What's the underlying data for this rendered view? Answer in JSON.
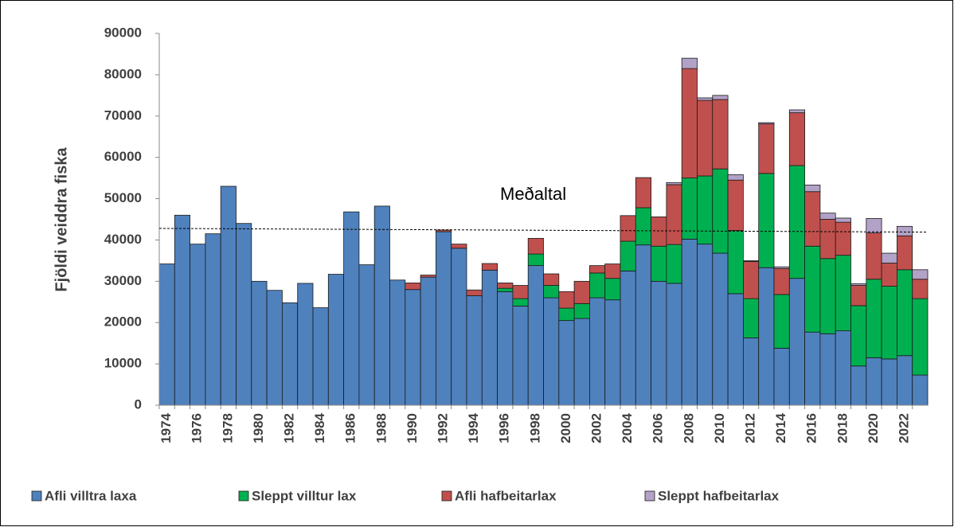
{
  "chart_data": {
    "type": "stacked_bar",
    "y_label": "Fjöldi veiddra fiska",
    "categories": [
      "1974",
      null,
      "1976",
      null,
      "1978",
      null,
      "1980",
      null,
      "1982",
      null,
      "1984",
      null,
      "1986",
      null,
      "1988",
      null,
      "1990",
      null,
      "1992",
      null,
      "1994",
      null,
      "1996",
      null,
      "1998",
      null,
      "2000",
      null,
      "2002",
      null,
      "2004",
      null,
      "2006",
      null,
      "2008",
      null,
      "2010",
      null,
      "2012",
      null,
      "2014",
      null,
      "2016",
      null,
      "2018",
      null,
      "2020",
      null,
      "2022",
      null
    ],
    "series": [
      {
        "name": "Afli villtra laxa",
        "color": "#4f81bd",
        "values": [
          34200,
          46000,
          39000,
          41500,
          53000,
          44000,
          30000,
          27800,
          24800,
          29500,
          23600,
          31700,
          46800,
          34000,
          48200,
          30300,
          28000,
          31000,
          42000,
          38000,
          26500,
          32700,
          27500,
          24000,
          33800,
          26000,
          20500,
          21000,
          26000,
          25500,
          32500,
          38800,
          30000,
          29500,
          40200,
          39000,
          36800,
          27000,
          16300,
          33300,
          13800,
          30700,
          17700,
          17300,
          18000,
          9500,
          11500,
          11200,
          12000,
          7300
        ]
      },
      {
        "name": "Sleppt villtur lax",
        "color": "#00b050",
        "values": [
          0,
          0,
          0,
          0,
          0,
          0,
          0,
          0,
          0,
          0,
          0,
          0,
          0,
          0,
          0,
          0,
          0,
          0,
          0,
          0,
          0,
          0,
          800,
          1800,
          2800,
          3000,
          3000,
          3600,
          6000,
          5200,
          7200,
          9000,
          8500,
          9400,
          14800,
          16500,
          20400,
          15300,
          9500,
          22800,
          13000,
          27300,
          20800,
          18200,
          18300,
          14600,
          19000,
          17600,
          20800,
          18500
        ]
      },
      {
        "name": "Afli hafbeitarlax",
        "color": "#c0504d",
        "values": [
          0,
          0,
          0,
          0,
          0,
          0,
          0,
          0,
          0,
          0,
          0,
          0,
          0,
          0,
          0,
          0,
          1600,
          500,
          400,
          1000,
          1400,
          1600,
          1300,
          3200,
          3800,
          2800,
          4000,
          5400,
          1800,
          3500,
          6200,
          7300,
          7100,
          14500,
          26500,
          18300,
          16800,
          12200,
          9000,
          12000,
          6300,
          12800,
          13200,
          9500,
          8000,
          4900,
          11200,
          5600,
          8200,
          4700
        ]
      },
      {
        "name": "Sleppt hafbeitarlax",
        "color": "#b3a2c7",
        "values": [
          0,
          0,
          0,
          0,
          0,
          0,
          0,
          0,
          0,
          0,
          0,
          0,
          0,
          0,
          0,
          0,
          0,
          0,
          0,
          0,
          0,
          0,
          0,
          0,
          0,
          0,
          0,
          0,
          0,
          0,
          0,
          0,
          0,
          500,
          2500,
          600,
          1000,
          1300,
          200,
          300,
          400,
          700,
          1600,
          1500,
          1000,
          400,
          3500,
          2400,
          2300,
          2300
        ]
      }
    ],
    "ylim": [
      0,
      90000
    ],
    "yticks": [
      0,
      10000,
      20000,
      30000,
      40000,
      50000,
      60000,
      70000,
      80000,
      90000
    ],
    "mean_line": {
      "label": "Meðaltal",
      "start": 42800,
      "end": 41900
    },
    "legend": "bottom"
  }
}
